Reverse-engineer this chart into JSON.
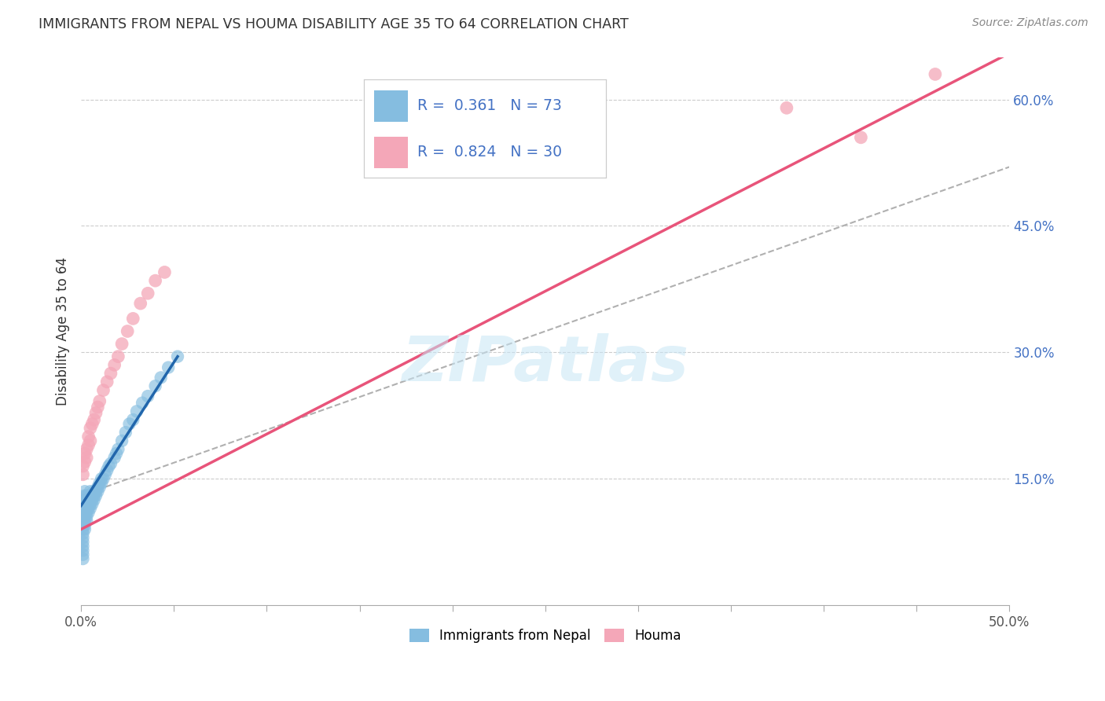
{
  "title": "IMMIGRANTS FROM NEPAL VS HOUMA DISABILITY AGE 35 TO 64 CORRELATION CHART",
  "source": "Source: ZipAtlas.com",
  "ylabel": "Disability Age 35 to 64",
  "x_min": 0.0,
  "x_max": 0.5,
  "y_min": 0.0,
  "y_max": 0.65,
  "x_ticks": [
    0.0,
    0.05,
    0.1,
    0.15,
    0.2,
    0.25,
    0.3,
    0.35,
    0.4,
    0.45,
    0.5
  ],
  "x_tick_labels_show": {
    "0.0": "0.0%",
    "0.5": "50.0%"
  },
  "y_ticks": [
    0.15,
    0.3,
    0.45,
    0.6
  ],
  "y_tick_labels": [
    "15.0%",
    "30.0%",
    "45.0%",
    "60.0%"
  ],
  "watermark": "ZIPatlas",
  "color_blue": "#85bde0",
  "color_pink": "#f4a7b8",
  "color_blue_line": "#2166ac",
  "color_pink_line": "#e8547a",
  "color_dashed": "#b0b0b0",
  "nepal_x": [
    0.001,
    0.001,
    0.001,
    0.001,
    0.001,
    0.001,
    0.001,
    0.001,
    0.001,
    0.001,
    0.001,
    0.001,
    0.001,
    0.002,
    0.002,
    0.002,
    0.002,
    0.002,
    0.002,
    0.002,
    0.002,
    0.002,
    0.002,
    0.003,
    0.003,
    0.003,
    0.003,
    0.003,
    0.003,
    0.003,
    0.004,
    0.004,
    0.004,
    0.004,
    0.004,
    0.005,
    0.005,
    0.005,
    0.005,
    0.005,
    0.006,
    0.006,
    0.006,
    0.007,
    0.007,
    0.007,
    0.008,
    0.008,
    0.009,
    0.009,
    0.01,
    0.01,
    0.011,
    0.011,
    0.012,
    0.013,
    0.014,
    0.015,
    0.016,
    0.018,
    0.019,
    0.02,
    0.022,
    0.024,
    0.026,
    0.028,
    0.03,
    0.033,
    0.036,
    0.04,
    0.043,
    0.047,
    0.052
  ],
  "nepal_y": [
    0.055,
    0.06,
    0.065,
    0.07,
    0.075,
    0.08,
    0.085,
    0.09,
    0.095,
    0.1,
    0.105,
    0.108,
    0.112,
    0.09,
    0.095,
    0.1,
    0.105,
    0.11,
    0.115,
    0.12,
    0.125,
    0.13,
    0.135,
    0.1,
    0.105,
    0.11,
    0.115,
    0.12,
    0.125,
    0.13,
    0.11,
    0.115,
    0.12,
    0.125,
    0.13,
    0.115,
    0.12,
    0.125,
    0.13,
    0.135,
    0.12,
    0.125,
    0.13,
    0.125,
    0.13,
    0.135,
    0.13,
    0.135,
    0.135,
    0.14,
    0.14,
    0.145,
    0.145,
    0.15,
    0.15,
    0.155,
    0.16,
    0.165,
    0.168,
    0.175,
    0.18,
    0.185,
    0.195,
    0.205,
    0.215,
    0.22,
    0.23,
    0.24,
    0.248,
    0.26,
    0.27,
    0.282,
    0.295
  ],
  "houma_x": [
    0.001,
    0.001,
    0.002,
    0.002,
    0.003,
    0.003,
    0.004,
    0.004,
    0.005,
    0.005,
    0.006,
    0.007,
    0.008,
    0.009,
    0.01,
    0.012,
    0.014,
    0.016,
    0.018,
    0.02,
    0.022,
    0.025,
    0.028,
    0.032,
    0.036,
    0.04,
    0.045,
    0.38,
    0.42,
    0.46
  ],
  "houma_y": [
    0.155,
    0.165,
    0.17,
    0.18,
    0.175,
    0.185,
    0.19,
    0.2,
    0.195,
    0.21,
    0.215,
    0.22,
    0.228,
    0.235,
    0.242,
    0.255,
    0.265,
    0.275,
    0.285,
    0.295,
    0.31,
    0.325,
    0.34,
    0.358,
    0.37,
    0.385,
    0.395,
    0.59,
    0.555,
    0.63
  ],
  "nepal_line_x": [
    0.0,
    0.052
  ],
  "nepal_line_y": [
    0.118,
    0.295
  ],
  "houma_line_x": [
    0.0,
    0.5
  ],
  "houma_line_y": [
    0.09,
    0.655
  ],
  "dash_line_x": [
    0.0,
    0.5
  ],
  "dash_line_y": [
    0.13,
    0.52
  ]
}
